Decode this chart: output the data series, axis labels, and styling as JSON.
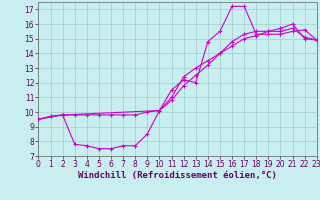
{
  "xlabel": "Windchill (Refroidissement éolien,°C)",
  "background_color": "#c8eef0",
  "grid_color": "#a0cece",
  "line_color": "#cc00cc",
  "xlim": [
    0,
    23
  ],
  "ylim": [
    7,
    17.5
  ],
  "yticks": [
    7,
    8,
    9,
    10,
    11,
    12,
    13,
    14,
    15,
    16,
    17
  ],
  "xticks": [
    0,
    1,
    2,
    3,
    4,
    5,
    6,
    7,
    8,
    9,
    10,
    11,
    12,
    13,
    14,
    15,
    16,
    17,
    18,
    19,
    20,
    21,
    22,
    23
  ],
  "line1_x": [
    0,
    1,
    2,
    3,
    4,
    5,
    6,
    7,
    8,
    9,
    10,
    11,
    12,
    13,
    14,
    15,
    16,
    17,
    18,
    19,
    20,
    21,
    22,
    23
  ],
  "line1_y": [
    9.5,
    9.7,
    9.8,
    7.8,
    7.7,
    7.5,
    7.5,
    7.7,
    7.7,
    8.5,
    10.1,
    11.5,
    12.2,
    12.0,
    14.8,
    15.5,
    17.2,
    17.2,
    15.3,
    15.3,
    15.3,
    15.5,
    15.6,
    14.9
  ],
  "line2_x": [
    0,
    1,
    2,
    3,
    4,
    5,
    6,
    7,
    8,
    9,
    10,
    11,
    12,
    13,
    14,
    15,
    16,
    17,
    18,
    19,
    20,
    21,
    22,
    23
  ],
  "line2_y": [
    9.5,
    9.7,
    9.8,
    9.8,
    9.8,
    9.8,
    9.8,
    9.8,
    9.8,
    10.0,
    10.1,
    11.0,
    12.4,
    13.0,
    13.5,
    14.0,
    14.5,
    15.0,
    15.2,
    15.5,
    15.7,
    16.0,
    15.0,
    14.9
  ],
  "line3_x": [
    0,
    2,
    10,
    11,
    12,
    13,
    14,
    15,
    16,
    17,
    18,
    19,
    20,
    21,
    22,
    23
  ],
  "line3_y": [
    9.5,
    9.8,
    10.1,
    10.8,
    11.8,
    12.5,
    13.2,
    14.0,
    14.8,
    15.3,
    15.5,
    15.5,
    15.5,
    15.7,
    15.1,
    14.9
  ],
  "linewidth": 0.8,
  "markersize": 3,
  "tick_fontsize": 5.5,
  "xlabel_fontsize": 6.5
}
